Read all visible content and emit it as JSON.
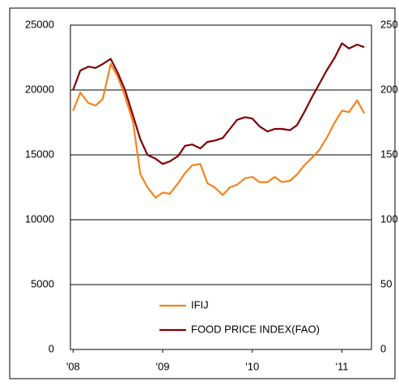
{
  "chart_data": {
    "type": "line",
    "x": [
      2008.0,
      2008.08,
      2008.17,
      2008.25,
      2008.33,
      2008.42,
      2008.5,
      2008.58,
      2008.67,
      2008.75,
      2008.83,
      2008.92,
      2009.0,
      2009.08,
      2009.17,
      2009.25,
      2009.33,
      2009.42,
      2009.5,
      2009.58,
      2009.67,
      2009.75,
      2009.83,
      2009.92,
      2010.0,
      2010.08,
      2010.17,
      2010.25,
      2010.33,
      2010.42,
      2010.5,
      2010.58,
      2010.67,
      2010.75,
      2010.83,
      2010.92,
      2011.0,
      2011.08,
      2011.17,
      2011.25
    ],
    "series": [
      {
        "name": "IFIJ",
        "color": "#f7821e",
        "values": [
          18400,
          19800,
          19000,
          18800,
          19300,
          22000,
          21000,
          19500,
          17500,
          13500,
          12500,
          11700,
          12100,
          12000,
          12800,
          13600,
          14200,
          14300,
          12800,
          12500,
          11900,
          12500,
          12700,
          13200,
          13300,
          12900,
          12900,
          13300,
          12900,
          13000,
          13500,
          14200,
          14800,
          15400,
          16300,
          17500,
          18400,
          18300,
          19200,
          18200
        ]
      },
      {
        "name": "FOOD PRICE INDEX(FAO)",
        "color": "#800000",
        "axis": "y2",
        "values": [
          200,
          215,
          218,
          217,
          220,
          224,
          213,
          200,
          180,
          162,
          150,
          147,
          143,
          145,
          149,
          157,
          158,
          155,
          160,
          161,
          163,
          170,
          177,
          179,
          178,
          172,
          168,
          170,
          170,
          169,
          173,
          183,
          195,
          205,
          215,
          225,
          236,
          232,
          235,
          233
        ]
      }
    ],
    "xlim": [
      2007.97,
      2011.33
    ],
    "xticks": [
      {
        "value": 2008,
        "label": "'08"
      },
      {
        "value": 2009,
        "label": "'09"
      },
      {
        "value": 2010,
        "label": "'10"
      },
      {
        "value": 2011,
        "label": "'11"
      }
    ],
    "ylim": [
      0,
      25000
    ],
    "yticks": [
      0,
      5000,
      10000,
      15000,
      20000,
      25000
    ],
    "y2lim": [
      0,
      250
    ],
    "y2ticks": [
      0,
      50,
      100,
      150,
      200,
      250
    ],
    "grid": true,
    "legend": "lower center"
  }
}
